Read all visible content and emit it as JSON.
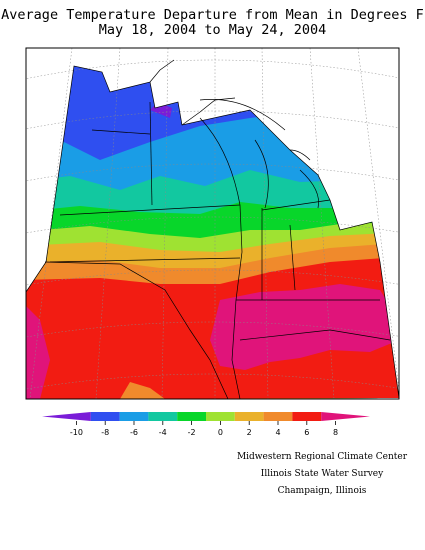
{
  "title_line1": "Average Temperature Departure from Mean in Degrees F",
  "title_line2": "May 18, 2004 to May 24, 2004",
  "legend": {
    "ticks": [
      "-10",
      "-8",
      "-6",
      "-4",
      "-2",
      "0",
      "2",
      "4",
      "6",
      "8"
    ],
    "colors": [
      "#7a1cd8",
      "#2f4ff0",
      "#1a9de6",
      "#12c8a0",
      "#08d62a",
      "#9fe232",
      "#eab12b",
      "#f08a2c",
      "#f21c12",
      "#e0147a"
    ]
  },
  "credits": {
    "line1": "Midwestern Regional Climate Center",
    "line2": "Illinois State Water Survey",
    "line3": "Champaign, Illinois"
  }
}
